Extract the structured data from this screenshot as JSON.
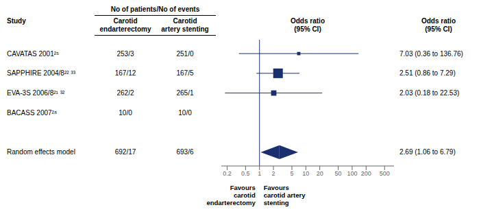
{
  "chart_data": {
    "type": "forest",
    "log": "x",
    "color": "#1a2f6e",
    "xlim": [
      0.15,
      800
    ],
    "xticks": [
      0.2,
      0.5,
      1,
      2,
      5,
      10,
      20,
      50,
      100,
      200,
      500
    ],
    "reference_line": 1,
    "spanning_header": "No of patients/No of events",
    "column_headers": [
      "Study",
      "Carotid\nendarterectomy",
      "Carotid\nartery stenting",
      "Odds ratio\n(95% CI)",
      "Odds ratio\n(95% CI)"
    ],
    "categories": [
      "CAVATAS 2001²⁵",
      "SAPPHIRE 2004/8²² ³³",
      "EVA-3S 2006/8²¹ ³²",
      "BACASS 2007²⁸"
    ],
    "n_endarterectomy": [
      "253/3",
      "167/12",
      "262/2",
      "10/0"
    ],
    "n_stenting": [
      "251/0",
      "167/5",
      "265/1",
      "10/0"
    ],
    "values": [
      7.03,
      2.51,
      2.03,
      null
    ],
    "lower": [
      0.36,
      0.86,
      0.18,
      null
    ],
    "upper": [
      136.76,
      7.29,
      22.53,
      null
    ],
    "value_labels": [
      "7.03 (0.36 to 136.76)",
      "2.51 (0.86 to 7.29)",
      "2.03 (0.18 to 22.53)",
      null
    ],
    "weights": [
      0.08,
      1.0,
      0.38,
      0.0
    ],
    "summary": {
      "label": "Random effects model",
      "n_endarterectomy": "692/17",
      "n_stenting": "693/6",
      "value": 2.69,
      "lower": 1.06,
      "upper": 6.79,
      "value_label": "2.69 (1.06 to 6.79)"
    },
    "annotations": [
      "Favours\ncarotid\nendarterectomy",
      "Favours\ncarotid artery\nstenting"
    ]
  }
}
